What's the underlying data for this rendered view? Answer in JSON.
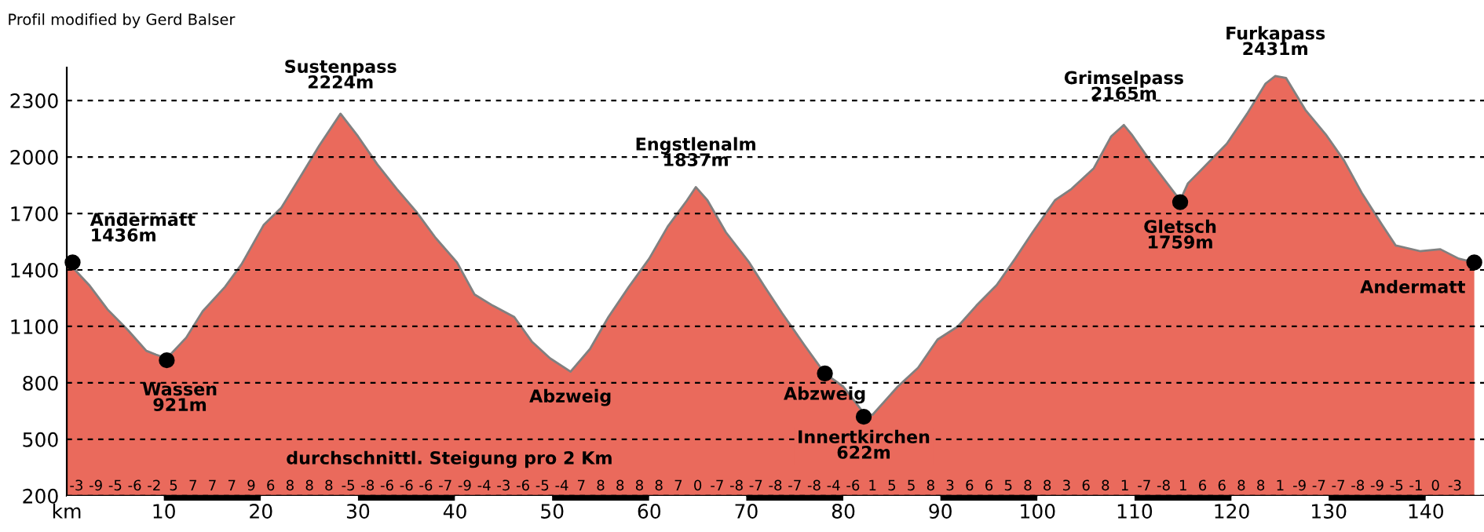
{
  "chart_data": {
    "type": "area",
    "title": "Profil modified by Gerd Balser",
    "series": [
      {
        "color": "#ea6a5c",
        "x": [
          0,
          0.3,
          2.3,
          4.2,
          6.3,
          8.2,
          9.2,
          10.3,
          12.3,
          14,
          16.3,
          18,
          20.3,
          22.1,
          24,
          26,
          28.2,
          30,
          32,
          34,
          36,
          38,
          40.2,
          42,
          43.9,
          46.1,
          47.9,
          49.8,
          51.9,
          53.9,
          55.8,
          57.9,
          60,
          61.9,
          63.9,
          64.8,
          66,
          67.9,
          70.3,
          71.9,
          73.7,
          76,
          78.1,
          80,
          82.1,
          83,
          85.6,
          87.7,
          89.7,
          91.8,
          93.7,
          95.8,
          97.7,
          99.5,
          101.8,
          103.5,
          105.8,
          107.6,
          108.9,
          109.7,
          111.6,
          114.7,
          115.5,
          117.6,
          119.5,
          121.6,
          123.5,
          124.5,
          125.6,
          127.6,
          129.7,
          131.6,
          133.4,
          135.5,
          136.9,
          139.4,
          141.5,
          143.4,
          145
        ],
        "values": [
          1440,
          1430,
          1320,
          1190,
          1080,
          970,
          950,
          930,
          1040,
          1180,
          1310,
          1430,
          1640,
          1730,
          1890,
          2060,
          2230,
          2110,
          1960,
          1830,
          1710,
          1570,
          1440,
          1270,
          1210,
          1150,
          1020,
          930,
          860,
          980,
          1150,
          1310,
          1460,
          1630,
          1770,
          1840,
          1770,
          1600,
          1440,
          1310,
          1170,
          1000,
          850,
          780,
          640,
          630,
          780,
          880,
          1030,
          1100,
          1210,
          1320,
          1460,
          1600,
          1770,
          1830,
          1940,
          2110,
          2170,
          2120,
          1980,
          1770,
          1860,
          1970,
          2070,
          2230,
          2390,
          2430,
          2420,
          2250,
          2120,
          1980,
          1810,
          1640,
          1530,
          1500,
          1510,
          1460,
          1440
        ]
      },
      {
        "type": "scatter",
        "color": "#000000",
        "marker": "circle",
        "x": [
          0.6,
          10.3,
          78.1,
          82.1,
          114.7,
          145
        ],
        "values": [
          1440,
          920,
          850,
          620,
          1760,
          1440
        ]
      }
    ],
    "xlim": [
      0,
      146
    ],
    "ylim": [
      200,
      2475
    ],
    "xticks": [
      {
        "value": 0,
        "label": "km"
      },
      10,
      20,
      30,
      40,
      50,
      60,
      70,
      80,
      90,
      100,
      110,
      120,
      130,
      140
    ],
    "yticks": [
      200,
      500,
      800,
      1100,
      1400,
      1700,
      2000,
      2300
    ],
    "grid": "y",
    "annotations": [
      {
        "text": "Andermatt\n1436m",
        "x": 0.6,
        "y": 1440
      },
      {
        "text": "Wassen\n921m",
        "x": 10.3,
        "y": 920
      },
      {
        "text": "Sustenpass\n2224m",
        "x": 28.2,
        "y": 2230
      },
      {
        "text": "Abzweig",
        "x": 51.9,
        "y": 860
      },
      {
        "text": "Engstlenalm\n1837m",
        "x": 64.8,
        "y": 1840
      },
      {
        "text": "Abzweig",
        "x": 78.1,
        "y": 850
      },
      {
        "text": "Innertkirchen\n622m",
        "x": 82.1,
        "y": 620
      },
      {
        "text": "Grimselpass\n2165m",
        "x": 108.9,
        "y": 2170
      },
      {
        "text": "Gletsch\n1759m",
        "x": 114.7,
        "y": 1760
      },
      {
        "text": "Furkapass\n2431m",
        "x": 124.5,
        "y": 2430
      },
      {
        "text": "Andermatt",
        "x": 145,
        "y": 1440
      },
      "durchschnittl. Steigung pro 2 Km",
      "-3",
      "-9",
      "-5",
      "-6",
      "-2",
      "5",
      "7",
      "7",
      "7",
      "9",
      "6",
      "8",
      "8",
      "8",
      "-5",
      "-8",
      "-6",
      "-6",
      "-6",
      "-7",
      "-9",
      "-4",
      "-3",
      "-6",
      "-5",
      "-4",
      "7",
      "8",
      "8",
      "8",
      "8",
      "7",
      "0",
      "-7",
      "-8",
      "-7",
      "-8",
      "-7",
      "-8",
      "-4",
      "-6",
      "1",
      "5",
      "5",
      "8",
      "3",
      "6",
      "6",
      "5",
      "8",
      "8",
      "3",
      "6",
      "8",
      "1",
      "-7",
      "-8",
      "1",
      "6",
      "6",
      "8",
      "8",
      "1",
      "-9",
      "-7",
      "-7",
      "-8",
      "-9",
      "-5",
      "-1",
      "0",
      "-3"
    ]
  }
}
